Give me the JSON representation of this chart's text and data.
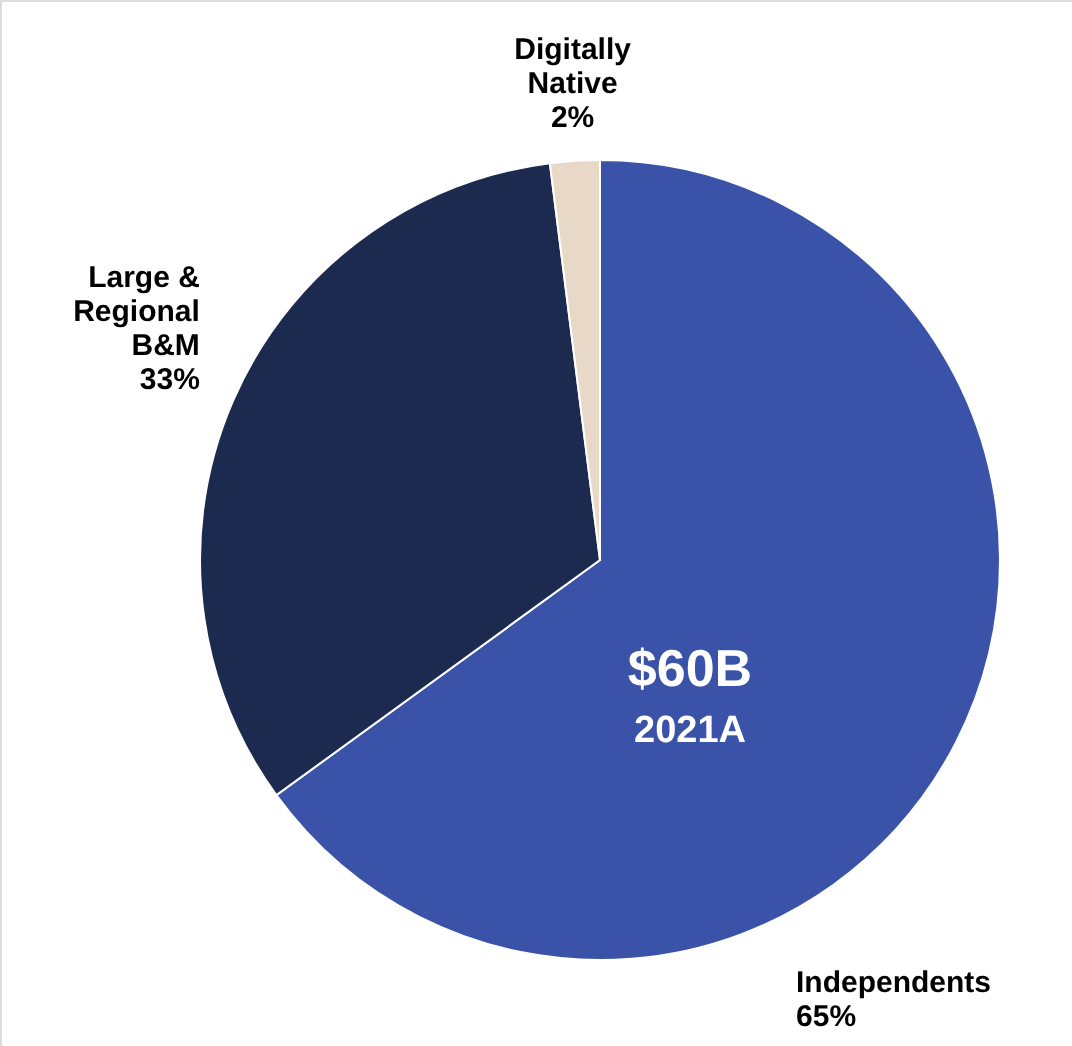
{
  "chart_data": {
    "type": "pie",
    "categories": [
      "Independents",
      "Large & Regional B&M",
      "Digitally Native"
    ],
    "values": [
      65,
      33,
      2
    ],
    "colors": [
      "#3a53a8",
      "#1b2a4e",
      "#e8d8c8"
    ],
    "value_labels": [
      "65%",
      "33%",
      "2%"
    ],
    "annotations": [
      "$60B",
      "2021A"
    ]
  }
}
